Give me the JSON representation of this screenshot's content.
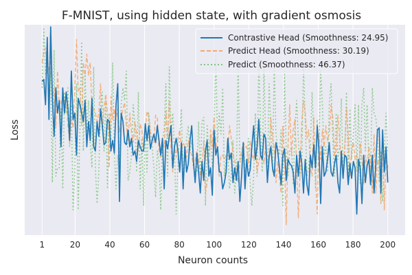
{
  "chart_data": {
    "type": "line",
    "title": "F-MNIST, using hidden state, with gradient osmosis",
    "xlabel": "Neuron counts",
    "ylabel": "Loss",
    "xlim": [
      -9,
      210
    ],
    "ylim": [
      0,
      100
    ],
    "x_ticks": [
      1,
      20,
      40,
      60,
      80,
      100,
      120,
      140,
      160,
      180,
      200
    ],
    "y_ticks_shown": false,
    "grid": true,
    "legend_position": "top-right",
    "series": [
      {
        "name": "Contrastive Head (Smoothness: 24.95)",
        "color": "#1f77b4",
        "style": "solid",
        "values": [
          73,
          74,
          62,
          94,
          55,
          99,
          65,
          47,
          70,
          58,
          64,
          42,
          70,
          58,
          68,
          60,
          45,
          78,
          55,
          58,
          38,
          65,
          62,
          58,
          54,
          64,
          42,
          54,
          45,
          65,
          42,
          40,
          54,
          47,
          60,
          52,
          43,
          44,
          55,
          54,
          40,
          45,
          39,
          62,
          72,
          16,
          58,
          54,
          44,
          43,
          50,
          42,
          46,
          38,
          40,
          35,
          45,
          42,
          40,
          40,
          53,
          45,
          52,
          41,
          45,
          48,
          44,
          52,
          45,
          38,
          46,
          22,
          45,
          41,
          47,
          52,
          32,
          42,
          46,
          40,
          30,
          44,
          22,
          42,
          30,
          34,
          45,
          52,
          35,
          25,
          39,
          30,
          20,
          35,
          26,
          40,
          45,
          28,
          32,
          19,
          50,
          38,
          42,
          30,
          30,
          22,
          25,
          30,
          46,
          36,
          39,
          25,
          32,
          26,
          35,
          16,
          28,
          44,
          22,
          36,
          28,
          31,
          42,
          52,
          36,
          42,
          55,
          38,
          36,
          48,
          46,
          25,
          37,
          42,
          32,
          28,
          44,
          40,
          32,
          24,
          38,
          41,
          26,
          36,
          34,
          33,
          30,
          20,
          38,
          28,
          40,
          34,
          20,
          36,
          24,
          19,
          38,
          32,
          43,
          32,
          52,
          40,
          15,
          42,
          28,
          30,
          36,
          44,
          30,
          28,
          34,
          38,
          25,
          20,
          40,
          27,
          38,
          37,
          24,
          34,
          27,
          35,
          32,
          10,
          36,
          32,
          15,
          38,
          25,
          33,
          36,
          24,
          38,
          20,
          33,
          50,
          51,
          20,
          50,
          30,
          42,
          25
        ]
      },
      {
        "name": "Predict Head (Smoothness: 30.19)",
        "color": "#f4a76c",
        "style": "dashed",
        "values": [
          82,
          87,
          89,
          77,
          79,
          85,
          66,
          70,
          51,
          78,
          62,
          64,
          59,
          60,
          68,
          52,
          44,
          56,
          51,
          69,
          93,
          68,
          70,
          52,
          82,
          76,
          86,
          76,
          82,
          61,
          60,
          58,
          54,
          58,
          72,
          50,
          60,
          67,
          58,
          32,
          66,
          55,
          60,
          55,
          60,
          49,
          55,
          60,
          63,
          52,
          45,
          58,
          49,
          44,
          54,
          48,
          40,
          53,
          50,
          40,
          50,
          59,
          56,
          48,
          46,
          44,
          57,
          56,
          40,
          37,
          44,
          42,
          59,
          46,
          64,
          42,
          30,
          42,
          37,
          46,
          50,
          41,
          44,
          42,
          37,
          45,
          40,
          38,
          33,
          35,
          40,
          36,
          28,
          32,
          45,
          20,
          25,
          30,
          50,
          42,
          56,
          45,
          38,
          28,
          38,
          38,
          36,
          38,
          40,
          52,
          46,
          38,
          36,
          30,
          25,
          35,
          40,
          44,
          42,
          42,
          34,
          45,
          38,
          36,
          45,
          30,
          35,
          38,
          40,
          34,
          43,
          35,
          38,
          56,
          46,
          42,
          25,
          35,
          28,
          20,
          52,
          34,
          5,
          42,
          62,
          38,
          50,
          55,
          34,
          8,
          31,
          54,
          64,
          58,
          46,
          50,
          32,
          28,
          56,
          28,
          10,
          48,
          36,
          50,
          42,
          52,
          45,
          48,
          62,
          56,
          38,
          40,
          57,
          46,
          34,
          30,
          42,
          60,
          48,
          28,
          40,
          44,
          36,
          38,
          30,
          44,
          36,
          24,
          38,
          32,
          42,
          35,
          20,
          48,
          20,
          36,
          33,
          15,
          48,
          12,
          38,
          32
        ]
      },
      {
        "name": "Predict (Smoothness: 46.37)",
        "color": "#7cc47c",
        "style": "dotted",
        "values": [
          70,
          98,
          76,
          92,
          58,
          78,
          25,
          88,
          28,
          32,
          32,
          60,
          22,
          68,
          58,
          70,
          42,
          62,
          12,
          30,
          72,
          12,
          50,
          92,
          40,
          78,
          48,
          64,
          44,
          32,
          80,
          32,
          15,
          30,
          62,
          68,
          40,
          64,
          22,
          58,
          45,
          82,
          40,
          22,
          38,
          28,
          62,
          70,
          64,
          78,
          26,
          30,
          38,
          62,
          52,
          30,
          68,
          22,
          46,
          14,
          52,
          30,
          58,
          50,
          42,
          32,
          18,
          40,
          35,
          12,
          45,
          50,
          72,
          28,
          80,
          48,
          58,
          40,
          10,
          35,
          48,
          60,
          22,
          36,
          46,
          52,
          40,
          45,
          32,
          30,
          30,
          54,
          30,
          54,
          56,
          14,
          52,
          38,
          48,
          32,
          50,
          86,
          44,
          58,
          48,
          70,
          28,
          36,
          40,
          22,
          28,
          45,
          20,
          30,
          82,
          34,
          38,
          44,
          30,
          34,
          46,
          24,
          14,
          28,
          58,
          28,
          85,
          52,
          30,
          80,
          44,
          28,
          72,
          52,
          30,
          82,
          48,
          42,
          38,
          50,
          14,
          78,
          38,
          28,
          40,
          42,
          24,
          50,
          64,
          46,
          28,
          35,
          80,
          54,
          28,
          32,
          42,
          68,
          48,
          22,
          55,
          40,
          78,
          62,
          38,
          42,
          30,
          62,
          72,
          46,
          28,
          58,
          36,
          42,
          65,
          30,
          40,
          68,
          28,
          60,
          36,
          48,
          62,
          30,
          62,
          24,
          62,
          70,
          40,
          62,
          34,
          30,
          70,
          58,
          56,
          48,
          25,
          40,
          16,
          40,
          58,
          40
        ]
      }
    ]
  }
}
